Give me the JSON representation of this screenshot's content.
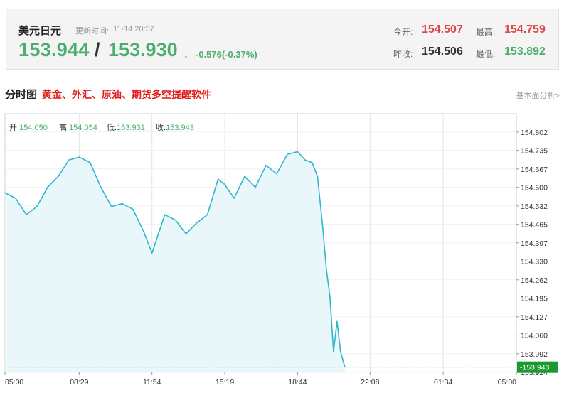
{
  "quote": {
    "name": "美元日元",
    "update_label": "更新时间:",
    "update_time": "11-14 20:57",
    "last_price": "153.944",
    "separator": "/",
    "ask_price": "153.930",
    "arrow": "↓",
    "change": "-0.576(-0.37%)",
    "open_label": "今开:",
    "open_value": "154.507",
    "high_label": "最高:",
    "high_value": "154.759",
    "prev_close_label": "昨收:",
    "prev_close_value": "154.506",
    "low_label": "最低:",
    "low_value": "153.892"
  },
  "section": {
    "title": "分时图",
    "promo_link": "黄金、外汇、原油、期货多空提醒软件",
    "analysis_link": "基本面分析>"
  },
  "colors": {
    "line": "#2fb6cc",
    "fill": "#e9f7fa",
    "up": "#e04848",
    "down": "#4cae6e",
    "grid": "#e4e4e4",
    "price_marker": "#1a9a2e"
  },
  "chart_data": {
    "type": "area",
    "ohlc": [
      {
        "label": "开:",
        "value": "154.050"
      },
      {
        "label": "高:",
        "value": "154.054"
      },
      {
        "label": "低:",
        "value": "153.931"
      },
      {
        "label": "收:",
        "value": "153.943"
      }
    ],
    "ylim": [
      153.924,
      154.869
    ],
    "y_ticks": [
      "154.802",
      "154.735",
      "154.667",
      "154.600",
      "154.532",
      "154.465",
      "154.397",
      "154.330",
      "154.262",
      "154.195",
      "154.127",
      "154.060",
      "153.992",
      "153.924"
    ],
    "x_ticks": [
      "05:00",
      "08:29",
      "11:54",
      "15:19",
      "18:44",
      "22:08",
      "01:34",
      "05:00"
    ],
    "current_price": "153.943",
    "grid": true,
    "series": [
      {
        "x": [
          "05:00",
          "05:30",
          "06:00",
          "06:30",
          "07:00",
          "07:30",
          "08:00",
          "08:29",
          "09:00",
          "09:30",
          "10:00",
          "10:30",
          "11:00",
          "11:30",
          "11:54",
          "12:30",
          "13:00",
          "13:30",
          "14:00",
          "14:30",
          "15:00",
          "15:19",
          "15:45",
          "16:15",
          "16:45",
          "17:15",
          "17:45",
          "18:15",
          "18:44",
          "19:05",
          "19:25",
          "19:40",
          "19:55",
          "20:05",
          "20:15",
          "20:25",
          "20:35",
          "20:45",
          "20:57"
        ],
        "values": [
          154.58,
          154.56,
          154.5,
          154.53,
          154.6,
          154.64,
          154.7,
          154.71,
          154.69,
          154.6,
          154.53,
          154.54,
          154.52,
          154.44,
          154.36,
          154.5,
          154.48,
          154.43,
          154.47,
          154.5,
          154.63,
          154.61,
          154.56,
          154.64,
          154.6,
          154.68,
          154.65,
          154.72,
          154.73,
          154.7,
          154.69,
          154.64,
          154.45,
          154.3,
          154.2,
          154.0,
          154.11,
          154.0,
          153.944
        ]
      }
    ]
  }
}
